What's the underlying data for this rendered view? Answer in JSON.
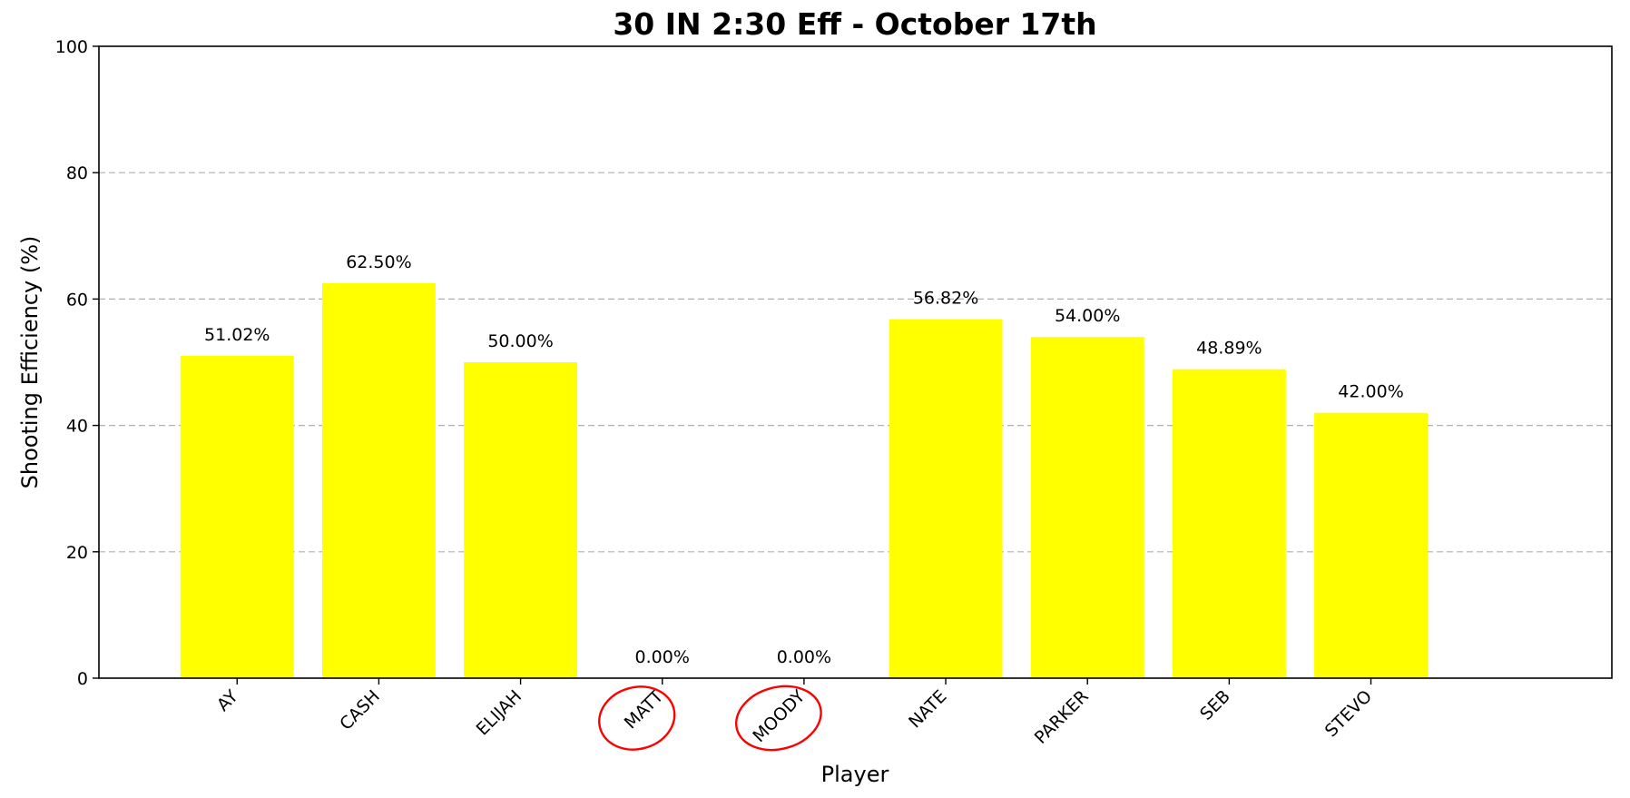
{
  "chart_data": {
    "type": "bar",
    "title": "30 IN 2:30 Eff - October 17th",
    "xlabel": "Player",
    "ylabel": "Shooting Efficiency (%)",
    "categories": [
      "AY",
      "CASH",
      "ELIJAH",
      "MATT",
      "MOODY",
      "NATE",
      "PARKER",
      "SEB",
      "STEVO"
    ],
    "values": [
      51.02,
      62.5,
      50.0,
      0.0,
      0.0,
      56.82,
      54.0,
      48.89,
      42.0
    ],
    "value_labels": [
      "51.02%",
      "62.50%",
      "50.00%",
      "0.00%",
      "0.00%",
      "56.82%",
      "54.00%",
      "48.89%",
      "42.00%"
    ],
    "ylim": [
      0,
      100
    ],
    "yticks": [
      0,
      20,
      40,
      60,
      80,
      100
    ],
    "grid": "horizontal dashed",
    "bar_color": "#ffff00",
    "highlighted_categories": [
      "MATT",
      "MOODY"
    ],
    "highlight_color": "#ff0000"
  }
}
